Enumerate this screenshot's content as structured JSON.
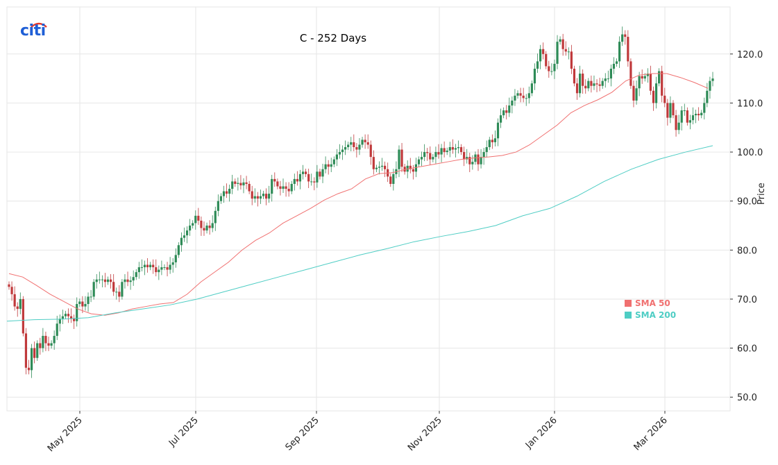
{
  "logo": {
    "text": "citi",
    "color": "#1f5fd6",
    "arc_color": "#e8392a"
  },
  "chart_data": {
    "type": "candlestick",
    "title": "C - 252 Days",
    "ylabel": "Price",
    "xlabel": "",
    "ylim": [
      47.2,
      129.6
    ],
    "yticks": [
      "50.0",
      "60.0",
      "70.0",
      "80.0",
      "90.0",
      "100.0",
      "110.0",
      "120.0"
    ],
    "xticks": [
      "May 2025",
      "Jul 2025",
      "Sep 2025",
      "Nov 2025",
      "Jan 2026",
      "Mar 2026"
    ],
    "grid": true,
    "legend_placement": "lower-right",
    "colors": {
      "up": "#2e8b57",
      "down": "#c0393b",
      "sma50": "#f07070",
      "sma200": "#4ecdc4"
    },
    "closes": [
      72.5,
      71,
      68.5,
      68,
      70,
      63,
      56,
      55.5,
      60,
      58,
      61,
      60,
      62.5,
      61,
      60.5,
      61,
      62.5,
      65,
      66,
      66.5,
      67,
      66.5,
      66,
      65.5,
      69,
      69.5,
      68.5,
      69,
      70.5,
      70.5,
      73.5,
      74,
      74,
      74,
      73.5,
      74,
      73.5,
      71.5,
      71.5,
      70.5,
      73.5,
      74,
      73.5,
      73.8,
      74.5,
      75.5,
      76.5,
      76.5,
      77,
      76.5,
      77,
      76.5,
      75.5,
      76,
      76.5,
      76.5,
      76,
      77,
      77.5,
      79,
      81,
      82.5,
      83,
      84,
      85,
      85.5,
      87,
      86,
      84.5,
      84,
      85,
      84.5,
      85.5,
      88,
      90,
      91,
      92,
      91.5,
      92.5,
      94,
      93.5,
      93.7,
      93.2,
      93.8,
      93.5,
      92,
      90.5,
      91,
      90.5,
      91,
      91.5,
      90.5,
      91.5,
      94.5,
      94,
      93,
      92.5,
      93,
      92.5,
      92,
      93.5,
      94.5,
      94,
      95.5,
      96,
      95.5,
      94,
      94,
      93.8,
      96,
      95,
      96.5,
      97.5,
      97,
      97.5,
      98.5,
      99.5,
      100,
      100.5,
      101,
      101.5,
      102,
      101,
      100.5,
      101.5,
      102.5,
      102,
      101.5,
      99,
      96.5,
      96.8,
      97,
      97.2,
      96.5,
      95,
      93.5,
      95.5,
      96.5,
      100.5,
      97,
      96,
      97.2,
      96.5,
      96,
      97.5,
      98.5,
      99,
      100,
      99.8,
      98.5,
      99,
      100,
      99.5,
      100.8,
      100,
      100.3,
      101,
      100.5,
      100.8,
      101,
      100,
      98.5,
      99,
      97.5,
      98,
      99.5,
      97.5,
      99,
      100,
      101,
      102.5,
      102,
      102.8,
      106,
      107.5,
      108.5,
      108,
      109.5,
      110.5,
      111.5,
      112,
      111.5,
      111,
      111,
      112,
      114,
      117,
      118.5,
      121,
      120,
      117.5,
      116.5,
      116.5,
      118,
      122.5,
      123,
      121,
      120.5,
      120.5,
      117,
      114,
      112,
      116,
      113.5,
      113,
      114.5,
      113.5,
      114,
      113.8,
      113.5,
      114.5,
      115,
      115,
      117,
      118,
      118.5,
      122.5,
      124,
      123.5,
      118.5,
      113.5,
      110.5,
      113,
      115.5,
      115,
      115.5,
      116,
      112.5,
      110,
      114,
      116.5,
      111.5,
      110,
      107,
      110,
      107.5,
      104.5,
      106,
      108.5,
      108.5,
      106,
      106.5,
      107.5,
      107.8,
      107.5,
      108,
      110,
      112.5,
      114.5,
      115
    ],
    "series": [
      {
        "name": "SMA 50",
        "values": [
          75.2,
          74.5,
          72.8,
          71,
          69.5,
          68,
          67,
          66.7,
          67.2,
          68,
          68.5,
          69,
          69.3,
          71,
          73.5,
          75.5,
          77.5,
          80,
          82,
          83.5,
          85.5,
          87,
          88.5,
          90.2,
          91.5,
          92.5,
          94.5,
          95.6,
          95.8,
          96.5,
          97,
          97.5,
          98,
          98.5,
          98.8,
          99,
          99.3,
          100,
          101.5,
          103.5,
          105.5,
          108,
          109.5,
          110.7,
          112.2,
          114.5,
          115.7,
          116,
          116,
          115.2,
          114.2,
          113
        ]
      },
      {
        "name": "SMA 200",
        "values": [
          65.5,
          65.8,
          65.9,
          66.2,
          67.2,
          68,
          68.8,
          70,
          71.5,
          73,
          74.5,
          76,
          77.5,
          79,
          80.3,
          81.7,
          82.8,
          83.8,
          85,
          87,
          88.5,
          91,
          94,
          96.5,
          98.5,
          100,
          101.3
        ]
      }
    ]
  }
}
